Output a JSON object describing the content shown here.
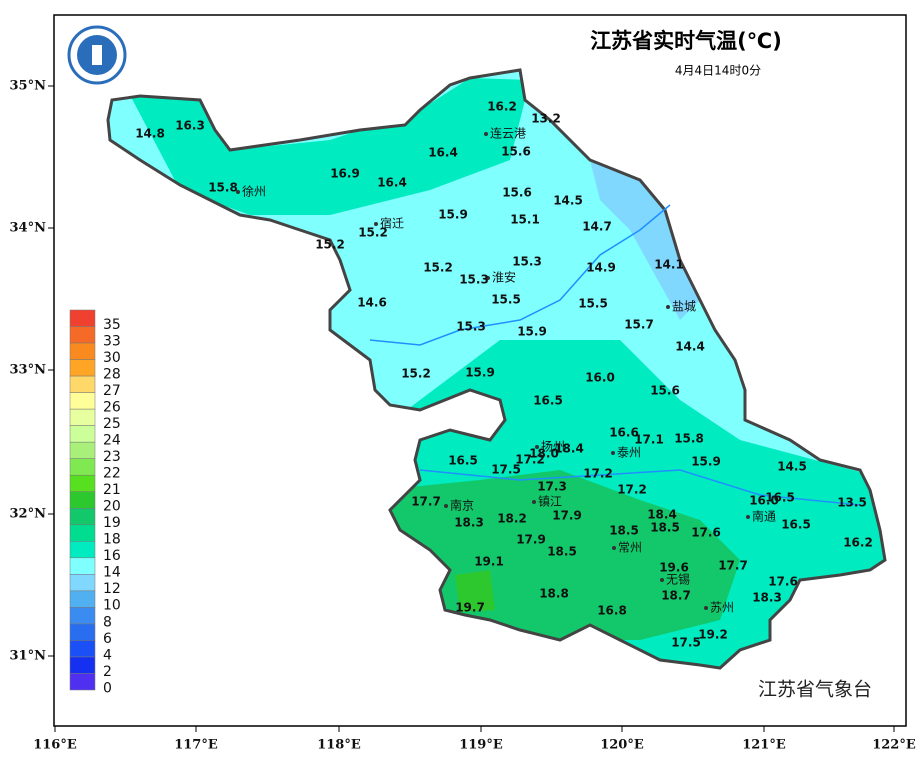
{
  "header": {
    "title": "江苏省实时气温(℃)",
    "time": "4月4日14时0分"
  },
  "axes": {
    "x_labels": [
      "116°E",
      "117°E",
      "118°E",
      "119°E",
      "120°E",
      "121°E",
      "122°E"
    ],
    "y_labels": [
      "35°N",
      "34°N",
      "33°N",
      "32°N",
      "31°N"
    ]
  },
  "legend": {
    "labels": [
      "35",
      "33",
      "30",
      "28",
      "27",
      "26",
      "25",
      "24",
      "23",
      "22",
      "21",
      "20",
      "19",
      "18",
      "16",
      "14",
      "12",
      "10",
      "8",
      "6",
      "4",
      "2",
      "0"
    ]
  },
  "cities": [
    "连云港",
    "徐州",
    "宿迁",
    "淮安",
    "盐城",
    "扬州",
    "泰州",
    "南京",
    "镇江",
    "常州",
    "南通",
    "无锡",
    "苏州"
  ],
  "stations": [
    "16.2",
    "13.2",
    "14.8",
    "16.3",
    "15.6",
    "16.4",
    "16.9",
    "16.4",
    "15.8",
    "15.6",
    "14.5",
    "15.9",
    "15.1",
    "14.7",
    "15.2",
    "15.2",
    "15.3",
    "14.1",
    "15.2",
    "14.9",
    "15.3",
    "15.5",
    "14.6",
    "15.5",
    "15.7",
    "15.3",
    "15.9",
    "14.4",
    "15.2",
    "15.9",
    "16.0",
    "15.6",
    "16.5",
    "16.6",
    "17.1",
    "15.8",
    "18.0",
    "18.4",
    "17.2",
    "16.5",
    "15.9",
    "17.5",
    "17.2",
    "14.5",
    "17.3",
    "17.2",
    "16.0",
    "16.5",
    "13.5",
    "17.7",
    "17.9",
    "18.4",
    "18.2",
    "18.3",
    "18.5",
    "18.5",
    "17.6",
    "16.5",
    "16.2",
    "17.9",
    "18.5",
    "19.1",
    "19.6",
    "17.7",
    "17.6",
    "18.8",
    "18.7",
    "18.3",
    "19.7",
    "16.8",
    "19.2",
    "17.5"
  ],
  "footer": "江苏省气象台"
}
